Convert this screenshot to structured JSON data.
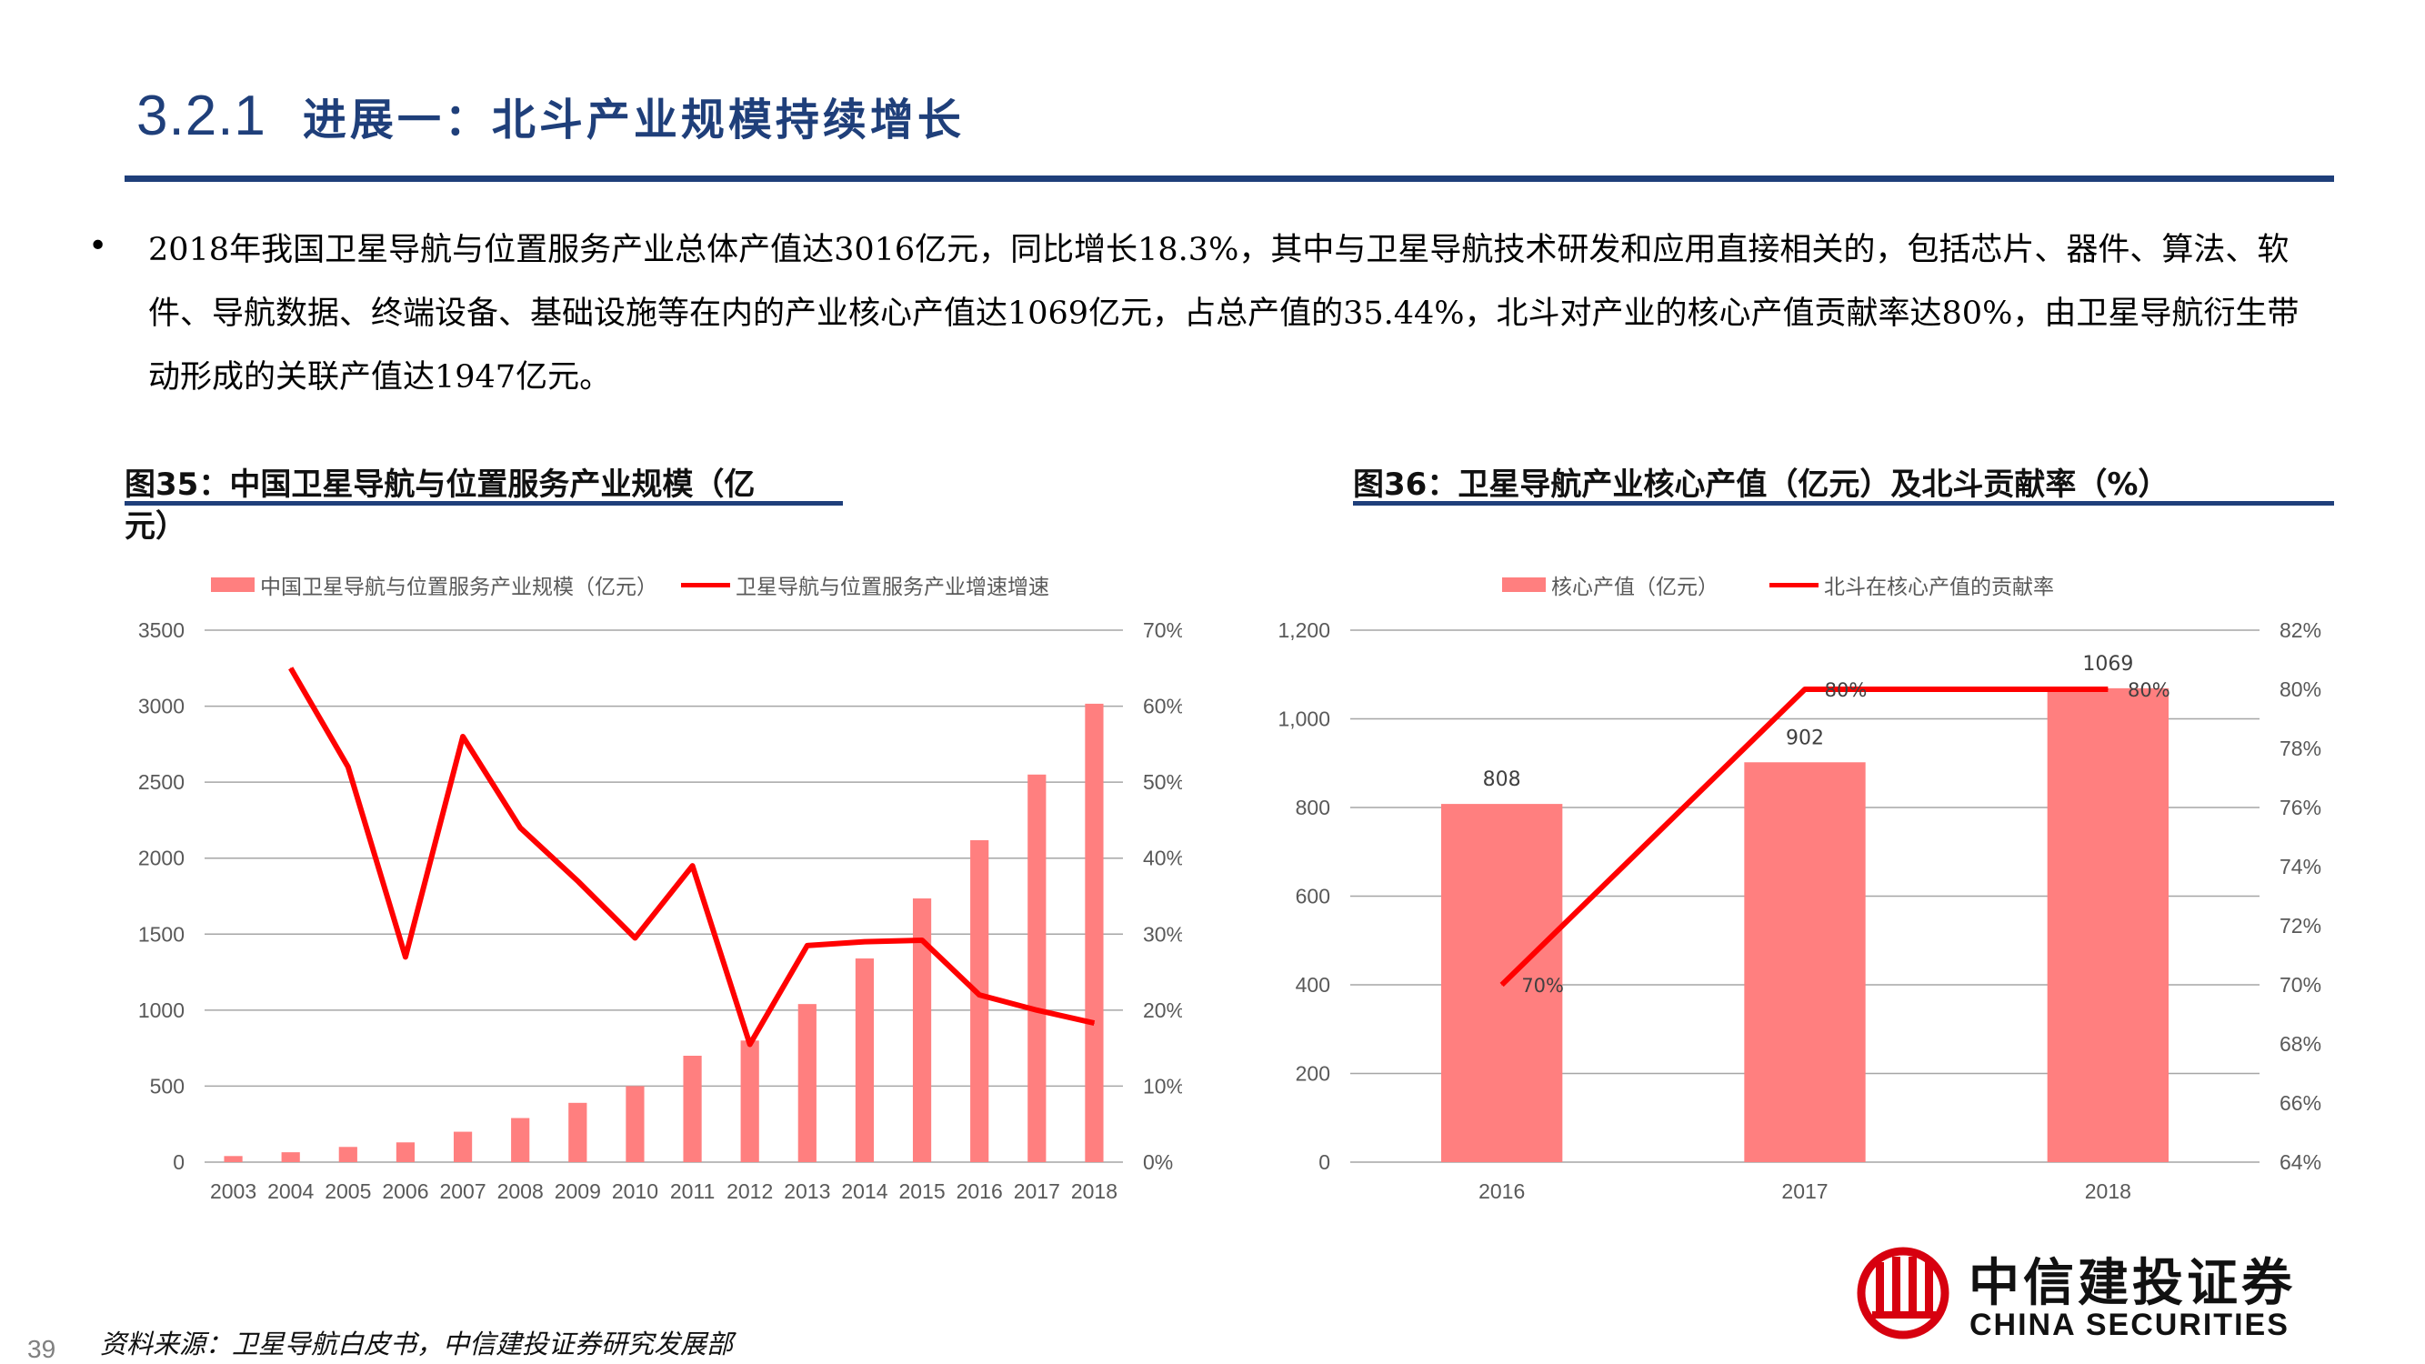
{
  "header": {
    "section_number": "3.2.1",
    "title": "进展一：北斗产业规模持续增长"
  },
  "bullet": {
    "symbol": "•",
    "text": "2018年我国卫星导航与位置服务产业总体产值达3016亿元，同比增长18.3%，其中与卫星导航技术研发和应用直接相关的，包括芯片、器件、算法、软件、导航数据、终端设备、基础设施等在内的产业核心产值达1069亿元，占总产值的35.44%，北斗对产业的核心产值贡献率达80%，由卫星导航衍生带动形成的关联产值达1947亿元。"
  },
  "figure35": {
    "caption_line1": "图35：中国卫星导航与位置服务产业规模（亿",
    "caption_line2": "元）"
  },
  "figure36": {
    "caption": "图36：卫星导航产业核心产值（亿元）及北斗贡献率（%）"
  },
  "chart_data": [
    {
      "type": "bar+line",
      "categories": [
        "2003",
        "2004",
        "2005",
        "2006",
        "2007",
        "2008",
        "2009",
        "2010",
        "2011",
        "2012",
        "2013",
        "2014",
        "2015",
        "2016",
        "2017",
        "2018"
      ],
      "series": [
        {
          "name": "中国卫星导航与位置服务产业规模（亿元）",
          "kind": "bar",
          "axis": "left",
          "values": [
            40,
            65,
            100,
            130,
            200,
            290,
            390,
            500,
            700,
            800,
            1040,
            1340,
            1735,
            2118,
            2550,
            3016
          ]
        },
        {
          "name": "卫星导航与位置服务产业增速增速",
          "kind": "line",
          "axis": "right",
          "values": [
            null,
            65,
            52,
            27,
            56,
            44,
            37,
            29.5,
            39,
            15.5,
            28.5,
            29,
            29.2,
            22,
            20,
            18.3
          ]
        }
      ],
      "left_axis": {
        "ylim": [
          0,
          3500
        ],
        "ticks": [
          "0",
          "500",
          "1000",
          "1500",
          "2000",
          "2500",
          "3000",
          "3500"
        ]
      },
      "right_axis": {
        "ylim": [
          0,
          70
        ],
        "ticks": [
          "0%",
          "10%",
          "20%",
          "30%",
          "40%",
          "50%",
          "60%",
          "70%"
        ]
      },
      "colors": {
        "bar": "#ff7f7f",
        "line": "#ff0000",
        "grid": "#a6a6a6",
        "text": "#595959"
      },
      "legend_position": "top"
    },
    {
      "type": "bar+line",
      "categories": [
        "2016",
        "2017",
        "2018"
      ],
      "series": [
        {
          "name": "核心产值（亿元）",
          "kind": "bar",
          "axis": "left",
          "values": [
            808,
            902,
            1069
          ],
          "data_labels": [
            "808",
            "902",
            "1069"
          ]
        },
        {
          "name": "北斗在核心产值的贡献率",
          "kind": "line",
          "axis": "right",
          "values": [
            70,
            80,
            80
          ],
          "data_labels": [
            "70%",
            "80%",
            "80%"
          ]
        }
      ],
      "left_axis": {
        "ylim": [
          0,
          1200
        ],
        "ticks": [
          "0",
          "200",
          "400",
          "600",
          "800",
          "1,000",
          "1,200"
        ]
      },
      "right_axis": {
        "ylim": [
          64,
          82
        ],
        "ticks": [
          "64%",
          "66%",
          "68%",
          "70%",
          "72%",
          "74%",
          "76%",
          "78%",
          "80%",
          "82%"
        ]
      },
      "colors": {
        "bar": "#ff7f7f",
        "line": "#ff0000",
        "grid": "#a6a6a6",
        "text": "#595959"
      },
      "legend_position": "top"
    }
  ],
  "footer": {
    "source": "资料来源：卫星导航白皮书，中信建投证券研究发展部",
    "page_number": "39"
  },
  "logo": {
    "cn_name": "中信建投证券",
    "en_name": "CHINA SECURITIES",
    "color": "#d7000f"
  }
}
